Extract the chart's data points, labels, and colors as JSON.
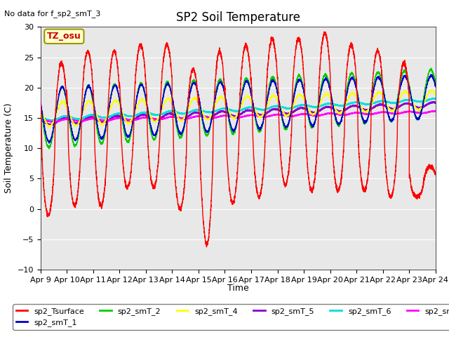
{
  "title": "SP2 Soil Temperature",
  "ylabel": "Soil Temperature (C)",
  "xlabel": "Time",
  "note": "No data for f_sp2_smT_3",
  "tz_label": "TZ_osu",
  "ylim": [
    -10,
    30
  ],
  "xlim": [
    0,
    15
  ],
  "xtick_labels": [
    "Apr 9",
    "Apr 10",
    "Apr 11",
    "Apr 12",
    "Apr 13",
    "Apr 14",
    "Apr 15",
    "Apr 16",
    "Apr 17",
    "Apr 18",
    "Apr 19",
    "Apr 20",
    "Apr 21",
    "Apr 22",
    "Apr 23",
    "Apr 24"
  ],
  "bg_color": "#e8e8e8",
  "series_colors": {
    "sp2_Tsurface": "#ff0000",
    "sp2_smT_1": "#0000cc",
    "sp2_smT_2": "#00cc00",
    "sp2_smT_4": "#ffff00",
    "sp2_smT_5": "#8800cc",
    "sp2_smT_6": "#00dddd",
    "sp2_smT_7": "#ff00ff"
  },
  "days": 15
}
